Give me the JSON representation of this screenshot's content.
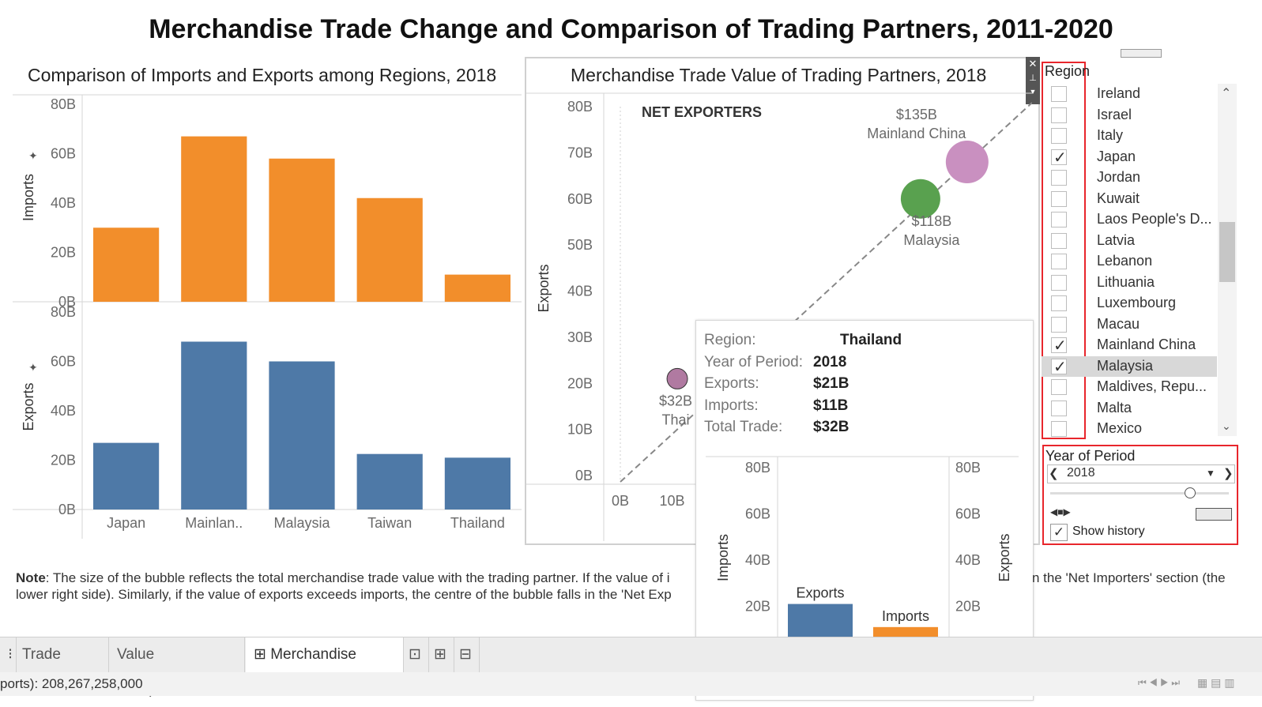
{
  "dashboard_title": "Merchandise Trade Change and Comparison of Trading Partners, 2011-2020",
  "left_panel": {
    "title": "Comparison of Imports and Exports among Regions, 2018",
    "imports_axis_label": "Imports",
    "exports_axis_label": "Exports"
  },
  "scatter_panel": {
    "title": "Merchandise Trade Value of Trading Partners, 2018",
    "net_exporters_label": "NET EXPORTERS",
    "y_axis_label": "Exports"
  },
  "chart_data": [
    {
      "type": "bar",
      "title": "Comparison of Imports and Exports among Regions, 2018",
      "ylabel": "Imports",
      "categories": [
        "Japan",
        "Mainlan..",
        "Malaysia",
        "Taiwan",
        "Thailand"
      ],
      "values": [
        30,
        67,
        58,
        42,
        11
      ],
      "ylim": [
        0,
        80
      ],
      "yticks": [
        "0B",
        "20B",
        "40B",
        "60B",
        "80B"
      ],
      "color": "#f28e2b"
    },
    {
      "type": "bar",
      "ylabel": "Exports",
      "categories": [
        "Japan",
        "Mainlan..",
        "Malaysia",
        "Taiwan",
        "Thailand"
      ],
      "values": [
        27,
        68,
        60,
        22.5,
        21
      ],
      "ylim": [
        0,
        80
      ],
      "yticks": [
        "0B",
        "20B",
        "40B",
        "60B",
        "80B"
      ],
      "color": "#4e79a7"
    },
    {
      "type": "scatter",
      "title": "Merchandise Trade Value of Trading Partners, 2018",
      "ylabel": "Exports",
      "ylim": [
        0,
        80
      ],
      "yticks": [
        "0B",
        "10B",
        "20B",
        "30B",
        "40B",
        "50B",
        "60B",
        "70B",
        "80B"
      ],
      "xticks": [
        "0B",
        "10B"
      ],
      "points": [
        {
          "x": 67,
          "y": 68,
          "value_label": "$135B",
          "name_label": "Mainland China",
          "color": "#c990c0"
        },
        {
          "x": 58,
          "y": 60,
          "value_label": "$118B",
          "name_label": "Malaysia",
          "color": "#59a14f"
        },
        {
          "x": 11,
          "y": 21,
          "value_label": "$32B",
          "name_label": "Thai",
          "color": "#b07aa1"
        }
      ]
    },
    {
      "type": "bar",
      "title": "",
      "categories": [
        "Exports",
        "Imports"
      ],
      "values": [
        21,
        11
      ],
      "bar_labels": [
        "Exports",
        "Imports"
      ],
      "ylim": [
        0,
        80
      ],
      "yticks": [
        "0B",
        "20B",
        "40B",
        "60B",
        "80B"
      ],
      "left_axis_label": "Imports",
      "right_axis_label": "Exports",
      "colors": [
        "#4e79a7",
        "#f28e2b"
      ]
    }
  ],
  "tooltip": {
    "rows": [
      {
        "key": "Region:",
        "value": "Thailand"
      },
      {
        "key": "Year of Period:",
        "value": "2018"
      },
      {
        "key": "Exports:",
        "value": "$21B"
      },
      {
        "key": "Imports:",
        "value": "$11B"
      },
      {
        "key": "Total Trade:",
        "value": "$32B"
      }
    ]
  },
  "region_filter": {
    "title": "Region",
    "items": [
      {
        "label": "Ireland",
        "checked": false
      },
      {
        "label": "Israel",
        "checked": false
      },
      {
        "label": "Italy",
        "checked": false
      },
      {
        "label": "Japan",
        "checked": true
      },
      {
        "label": "Jordan",
        "checked": false
      },
      {
        "label": "Kuwait",
        "checked": false
      },
      {
        "label": "Laos People's D...",
        "checked": false
      },
      {
        "label": "Latvia",
        "checked": false
      },
      {
        "label": "Lebanon",
        "checked": false
      },
      {
        "label": "Lithuania",
        "checked": false
      },
      {
        "label": "Luxembourg",
        "checked": false
      },
      {
        "label": "Macau",
        "checked": false
      },
      {
        "label": "Mainland China",
        "checked": true
      },
      {
        "label": "Malaysia",
        "checked": true
      },
      {
        "label": "Maldives, Repu...",
        "checked": false
      },
      {
        "label": "Malta",
        "checked": false
      },
      {
        "label": "Mexico",
        "checked": false
      }
    ]
  },
  "year_filter": {
    "title": "Year of Period",
    "value": "2018",
    "show_history_label": "Show history",
    "show_history_checked": true
  },
  "note": {
    "bold": "Note",
    "line1_left": ": The size of the bubble reflects the total merchandise trade value with the trading partner. If the value of i",
    "line1_right": "n the 'Net Importers' section (the",
    "line2_left": "lower right side). Similarly, if the value of exports exceeds imports, the centre of the bubble falls in the 'Net Exp"
  },
  "tabs": [
    {
      "label": "Trade Value",
      "active": false
    },
    {
      "label": "Value Comparison",
      "active": false
    },
    {
      "label": "Merchandise Trade",
      "active": true
    }
  ],
  "status_text": "ports): 208,267,258,000",
  "colors": {
    "orange": "#f28e2b",
    "blue": "#4e79a7",
    "accent_red": "#e8262c"
  }
}
